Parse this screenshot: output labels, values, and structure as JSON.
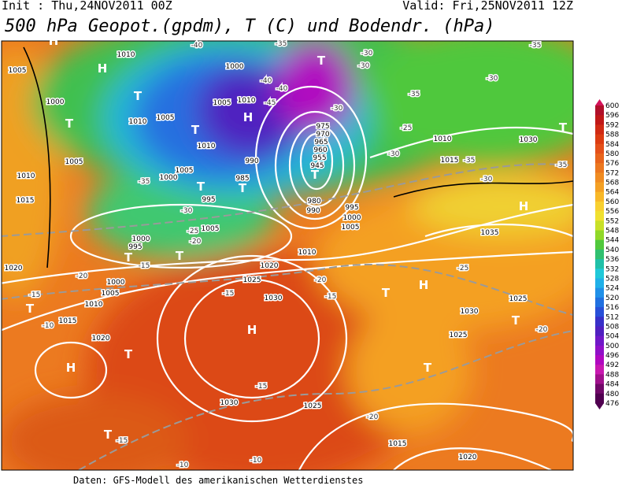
{
  "header": {
    "init": "Init : Thu,24NOV2011 00Z",
    "valid": "Valid: Fri,25NOV2011 12Z",
    "title": "500 hPa Geopot.(gpdm), T (C) und Bodendr. (hPa)"
  },
  "map": {
    "pressure_centers": [
      "H",
      "H",
      "T",
      "T",
      "T",
      "H",
      "T",
      "T",
      "T",
      "T",
      "H",
      "T",
      "T",
      "T",
      "T",
      "H",
      "T",
      "H",
      "T",
      "H",
      "T",
      "T",
      "T"
    ],
    "isobar_labels": [
      "1010",
      "1005",
      "1000",
      "1010",
      "1005",
      "1000",
      "1005",
      "1010",
      "1010",
      "1005",
      "1010",
      "1015",
      "1005",
      "1000",
      "995",
      "985",
      "990",
      "975",
      "970",
      "965",
      "960",
      "955",
      "945",
      "980",
      "990",
      "995",
      "1000",
      "1005",
      "1005",
      "1000",
      "995",
      "1020",
      "1000",
      "1005",
      "1010",
      "1015",
      "1020",
      "1025",
      "1030",
      "1010",
      "1020",
      "1030",
      "1025",
      "1010",
      "1015",
      "1030",
      "1035",
      "1025",
      "1030",
      "1025",
      "1015",
      "1020"
    ],
    "temperature_labels": [
      "-40",
      "-35",
      "-30",
      "-30",
      "-35",
      "-30",
      "-35",
      "-40",
      "-45",
      "-40",
      "-30",
      "-25",
      "-30",
      "-35",
      "-35",
      "-30",
      "-35",
      "-30",
      "-25",
      "-20",
      "-15",
      "-20",
      "-15",
      "-10",
      "-15",
      "-20",
      "-15",
      "-25",
      "-20",
      "-20",
      "-15",
      "-15",
      "-10",
      "-10"
    ]
  },
  "colorbar": {
    "levels": [
      600,
      596,
      592,
      588,
      584,
      580,
      576,
      572,
      568,
      564,
      560,
      556,
      552,
      548,
      544,
      540,
      536,
      532,
      528,
      524,
      520,
      516,
      512,
      508,
      504,
      500,
      496,
      492,
      488,
      484,
      480,
      476
    ],
    "colors": [
      "#d4145a",
      "#b0102a",
      "#c01818",
      "#d02a14",
      "#dc3c12",
      "#e4501a",
      "#e8641c",
      "#ec7820",
      "#f08c22",
      "#f4a024",
      "#f8b828",
      "#f8d030",
      "#f0e030",
      "#c8e028",
      "#90d828",
      "#50c83c",
      "#30c070",
      "#20c0a8",
      "#20c8d8",
      "#20b0e8",
      "#2090e8",
      "#2070e0",
      "#2850d8",
      "#3830c8",
      "#5020c0",
      "#7018c8",
      "#9010c8",
      "#b008c0",
      "#c818b0",
      "#a0108c",
      "#700868",
      "#500050"
    ]
  },
  "footer": "Daten: GFS-Modell des amerikanischen Wetterdienstes"
}
